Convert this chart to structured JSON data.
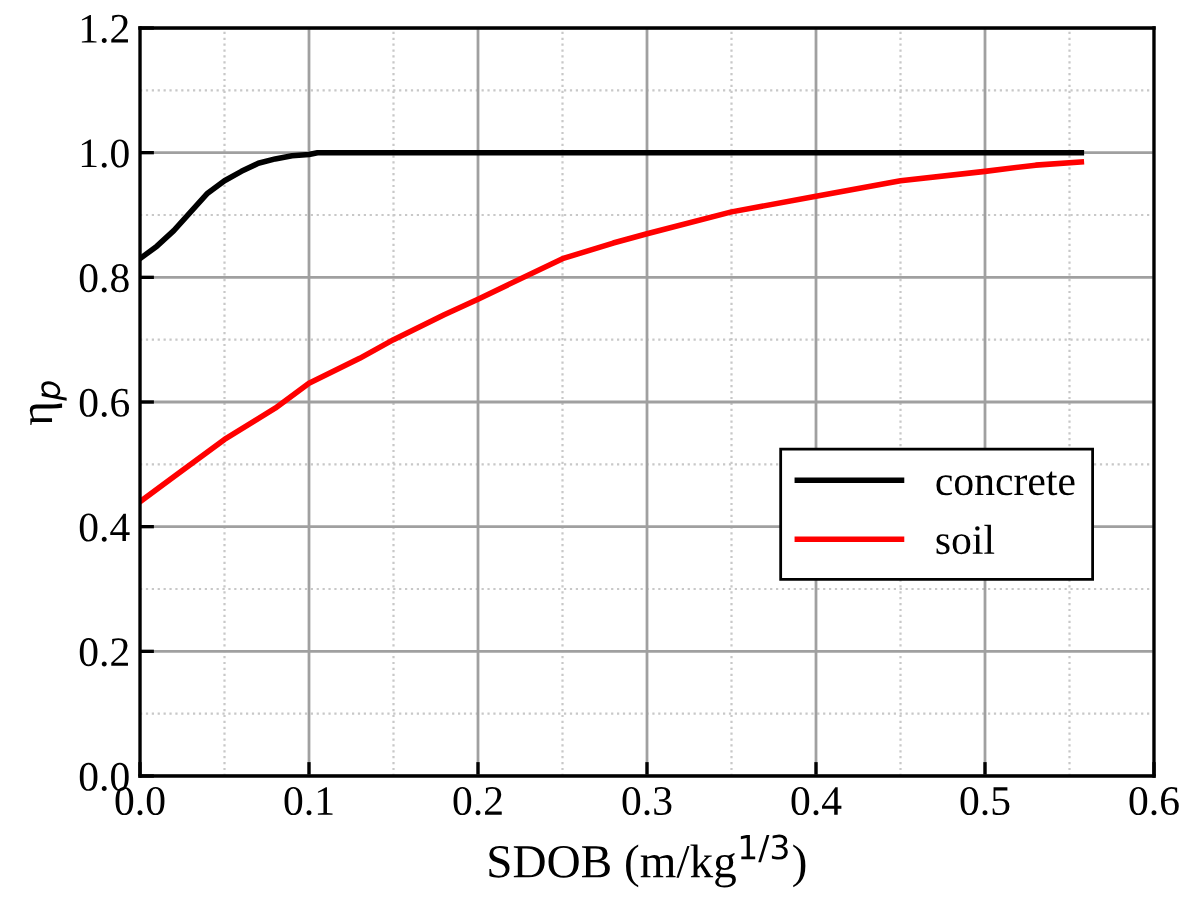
{
  "chart_data": {
    "type": "line",
    "xlabel": "SDOB (m/kg$^{1/3}$)",
    "ylabel": "η$_{p}$",
    "xlim": [
      0,
      0.6
    ],
    "ylim": [
      0,
      1.2
    ],
    "xticks": [
      {
        "value": 0,
        "label": "0.0"
      },
      0.1,
      0.2,
      0.3,
      0.4,
      0.5,
      0.6
    ],
    "yticks": [
      {
        "value": 0,
        "label": "0.0"
      },
      0.2,
      0.4,
      0.6,
      0.8,
      {
        "value": 1,
        "label": "1.0"
      },
      1.2
    ],
    "grid": true,
    "legend": "right",
    "line_style": "solid",
    "marker": "none",
    "series": [
      {
        "name": "concrete",
        "color": "#000000",
        "x": [
          0,
          0.01,
          0.02,
          0.03,
          0.04,
          0.05,
          0.06,
          0.07,
          0.08,
          0.09,
          0.1,
          0.105,
          0.557
        ],
        "values": [
          0.83,
          0.85,
          0.875,
          0.905,
          0.935,
          0.955,
          0.97,
          0.983,
          0.99,
          0.995,
          0.997,
          1.0,
          1.0
        ]
      },
      {
        "name": "soil",
        "color": "#ff0000",
        "x": [
          0,
          0.02,
          0.05,
          0.08,
          0.1,
          0.13,
          0.15,
          0.18,
          0.2,
          0.25,
          0.28,
          0.3,
          0.35,
          0.4,
          0.45,
          0.5,
          0.53,
          0.557
        ],
        "values": [
          0.44,
          0.48,
          0.54,
          0.59,
          0.63,
          0.67,
          0.7,
          0.74,
          0.765,
          0.83,
          0.855,
          0.87,
          0.905,
          0.93,
          0.955,
          0.97,
          0.98,
          0.985
        ]
      }
    ]
  }
}
